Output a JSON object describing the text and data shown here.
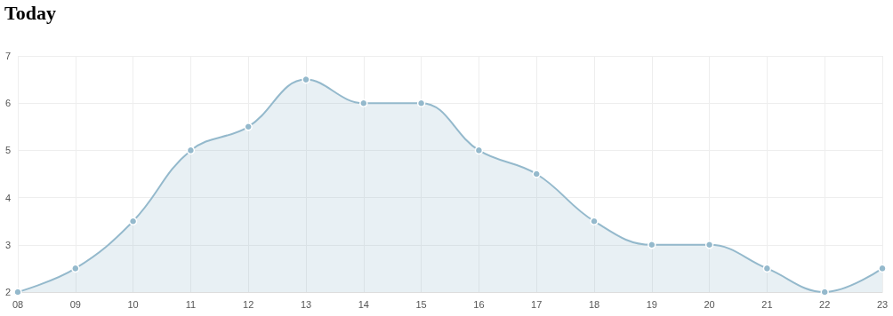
{
  "chart_data": {
    "type": "area",
    "title": "Today",
    "categories": [
      "08",
      "09",
      "10",
      "11",
      "12",
      "13",
      "14",
      "15",
      "16",
      "17",
      "18",
      "19",
      "20",
      "21",
      "22",
      "23"
    ],
    "series": [
      {
        "color": "#94b9cc",
        "values": [
          2,
          2.5,
          3.5,
          5,
          5.5,
          6.5,
          6,
          6,
          5,
          4.5,
          3.5,
          3,
          3,
          2.5,
          2,
          2.5
        ]
      }
    ],
    "ylim": [
      2,
      7
    ],
    "yticks": [
      2,
      3,
      4,
      5,
      6,
      7
    ],
    "grid": true,
    "marker": "circle"
  }
}
